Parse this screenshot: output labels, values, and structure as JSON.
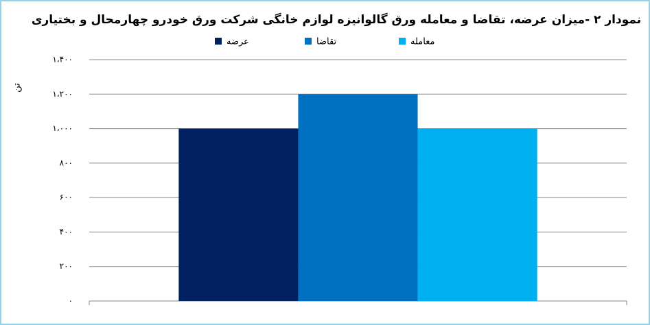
{
  "chart_data": {
    "type": "bar",
    "title": "نمودار ۲ -میزان عرضه، تقاضا و معامله ورق گالوانیزه لوازم خانگی شرکت ورق خودرو چهارمحال و بختیاری",
    "y_label": "تن",
    "categories": [
      null
    ],
    "series": [
      {
        "name": "عرضه",
        "color": "#002060",
        "values": [
          1000
        ]
      },
      {
        "name": "تقاضا",
        "color": "#0070c0",
        "values": [
          1200
        ]
      },
      {
        "name": "معامله",
        "color": "#00b0f0",
        "values": [
          1000
        ]
      }
    ],
    "ylim": [
      0,
      1400
    ],
    "yticks": [
      {
        "value": 0,
        "label": "۰"
      },
      {
        "value": 200,
        "label": "۲۰۰"
      },
      {
        "value": 400,
        "label": "۴۰۰"
      },
      {
        "value": 600,
        "label": "۶۰۰"
      },
      {
        "value": 800,
        "label": "۸۰۰"
      },
      {
        "value": 1000,
        "label": "۱،۰۰۰"
      },
      {
        "value": 1200,
        "label": "۱،۲۰۰"
      },
      {
        "value": 1400,
        "label": "۱،۴۰۰"
      }
    ],
    "grid": true,
    "legend": "top"
  }
}
